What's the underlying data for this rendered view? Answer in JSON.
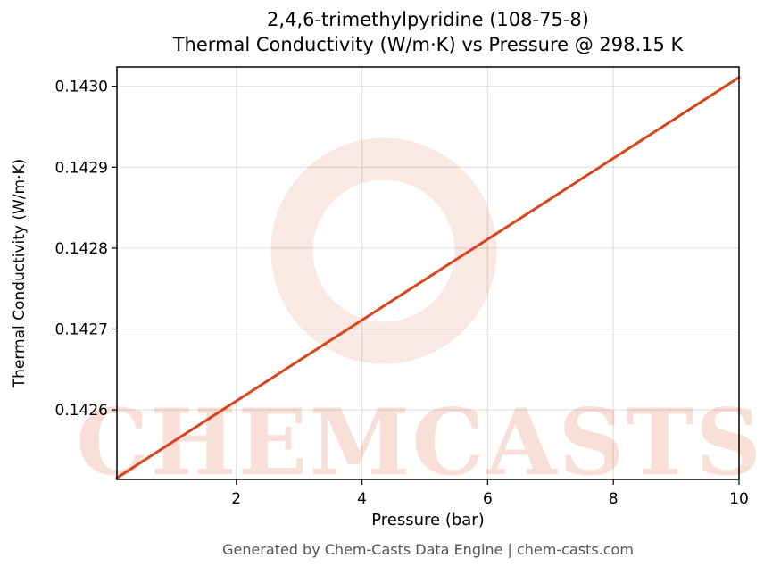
{
  "figure": {
    "title_line1": "2,4,6-trimethylpyridine (108-75-8)",
    "title_line2": "Thermal Conductivity (W/m·K) vs Pressure @ 298.15 K"
  },
  "watermark": {
    "text": "CHEMCASTS"
  },
  "footer": {
    "text": "Generated by Chem-Casts Data Engine | chem-casts.com"
  },
  "chart_data": {
    "type": "line",
    "title": "2,4,6-trimethylpyridine (108-75-8)\nThermal Conductivity (W/m·K) vs Pressure @ 298.15 K",
    "xlabel": "Pressure (bar)",
    "ylabel": "Thermal Conductivity (W/m·K)",
    "x": [
      0.1,
      1,
      2,
      3,
      4,
      5,
      6,
      7,
      8,
      9,
      10
    ],
    "series": [
      {
        "name": "thermal_conductivity_W_per_mK",
        "values": [
          0.142516,
          0.142561,
          0.142611,
          0.142661,
          0.142711,
          0.142761,
          0.142811,
          0.142861,
          0.142911,
          0.142961,
          0.143011
        ]
      }
    ],
    "xlim": [
      0.1,
      10
    ],
    "ylim": [
      0.142514,
      0.143024
    ],
    "xticks": [
      2,
      4,
      6,
      8,
      10
    ],
    "yticks": [
      0.1426,
      0.1427,
      0.1428,
      0.1429,
      0.143
    ],
    "ytick_decimals": 4,
    "grid": true,
    "legend": "none",
    "line_color": "#d6451c",
    "grid_color": "#dddddd",
    "watermark_color": "#d6451c",
    "frame_color": "#000000"
  }
}
